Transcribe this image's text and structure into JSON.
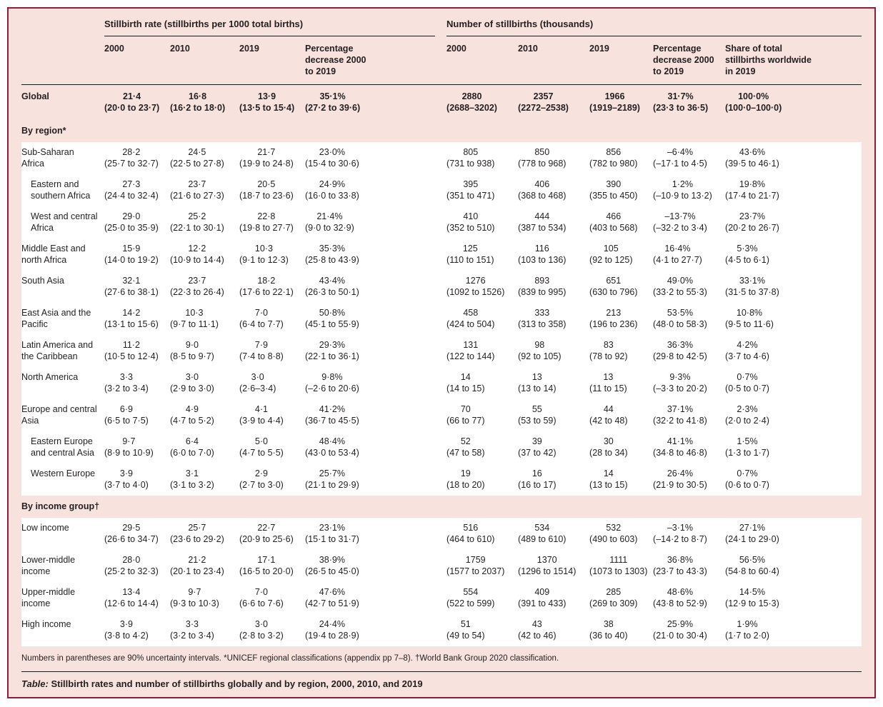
{
  "colors": {
    "maroon_border": "#8e1c3b",
    "pink_background": "#f8e2dd",
    "row_white": "#ffffff",
    "text": "#231f20"
  },
  "table": {
    "groups": [
      {
        "label": "Stillbirth rate (stillbirths per 1000 total births)"
      },
      {
        "label": "Number of stillbirths (thousands)"
      }
    ],
    "columns": [
      "2000",
      "2010",
      "2019",
      "Percentage decrease 2000 to 2019",
      "2000",
      "2010",
      "2019",
      "Percentage decrease 2000 to 2019",
      "Share of total stillbirths worldwide in 2019"
    ],
    "rows": [
      {
        "label": "Global",
        "type": "global",
        "indent": false,
        "cells": [
          [
            "21·4",
            "(20·0 to 23·7)"
          ],
          [
            "16·8",
            "(16·2 to 18·0)"
          ],
          [
            "13·9",
            "(13·5 to 15·4)"
          ],
          [
            "35·1%",
            "(27·2 to 39·6)"
          ],
          [
            "2880",
            "(2688–3202)"
          ],
          [
            "2357",
            "(2272–2538)"
          ],
          [
            "1966",
            "(1919–2189)"
          ],
          [
            "31·7%",
            "(23·3 to 36·5)"
          ],
          [
            "100·0%",
            "(100·0–100·0)"
          ]
        ]
      },
      {
        "label": "By region*",
        "type": "section"
      },
      {
        "label": "Sub-Saharan Africa",
        "type": "data",
        "indent": false,
        "cells": [
          [
            "28·2",
            "(25·7 to 32·7)"
          ],
          [
            "24·5",
            "(22·5 to 27·8)"
          ],
          [
            "21·7",
            "(19·9 to 24·8)"
          ],
          [
            "23·0%",
            "(15·4 to 30·6)"
          ],
          [
            "805",
            "(731 to 938)"
          ],
          [
            "850",
            "(778 to 968)"
          ],
          [
            "856",
            "(782 to 980)"
          ],
          [
            "–6·4%",
            "(–17·1 to 4·5)"
          ],
          [
            "43·6%",
            "(39·5 to 46·1)"
          ]
        ]
      },
      {
        "label": "Eastern and southern Africa",
        "type": "data",
        "indent": true,
        "cells": [
          [
            "27·3",
            "(24·4 to 32·4)"
          ],
          [
            "23·7",
            "(21·6 to 27·3)"
          ],
          [
            "20·5",
            "(18·7 to 23·6)"
          ],
          [
            "24·9%",
            "(16·0 to 33·8)"
          ],
          [
            "395",
            "(351 to 471)"
          ],
          [
            "406",
            "(368 to 468)"
          ],
          [
            "390",
            "(355 to 450)"
          ],
          [
            "1·2%",
            "(–10·9 to 13·2)"
          ],
          [
            "19·8%",
            "(17·4 to 21·7)"
          ]
        ]
      },
      {
        "label": "West and central Africa",
        "type": "data",
        "indent": true,
        "cells": [
          [
            "29·0",
            "(25·0 to 35·9)"
          ],
          [
            "25·2",
            "(22·1 to 30·1)"
          ],
          [
            "22·8",
            "(19·8 to 27·7)"
          ],
          [
            "21·4%",
            "(9·0 to 32·9)"
          ],
          [
            "410",
            "(352 to 510)"
          ],
          [
            "444",
            "(387 to 534)"
          ],
          [
            "466",
            "(403 to 568)"
          ],
          [
            "–13·7%",
            "(–32·2 to 3·4)"
          ],
          [
            "23·7%",
            "(20·2 to 26·7)"
          ]
        ]
      },
      {
        "label": "Middle East and north Africa",
        "type": "data",
        "indent": false,
        "cells": [
          [
            "15·9",
            "(14·0 to 19·2)"
          ],
          [
            "12·2",
            "(10·9 to 14·4)"
          ],
          [
            "10·3",
            "(9·1 to 12·3)"
          ],
          [
            "35·3%",
            "(25·8 to 43·9)"
          ],
          [
            "125",
            "(110 to 151)"
          ],
          [
            "116",
            "(103 to 136)"
          ],
          [
            "105",
            "(92 to 125)"
          ],
          [
            "16·4%",
            "(4·1 to 27·7)"
          ],
          [
            "5·3%",
            "(4·5 to 6·1)"
          ]
        ]
      },
      {
        "label": "South Asia",
        "type": "data",
        "indent": false,
        "cells": [
          [
            "32·1",
            "(27·6 to 38·1)"
          ],
          [
            "23·7",
            "(22·3 to 26·4)"
          ],
          [
            "18·2",
            "(17·6 to 22·1)"
          ],
          [
            "43·4%",
            "(26·3 to 50·1)"
          ],
          [
            "1276",
            "(1092 to 1526)"
          ],
          [
            "893",
            "(839 to 995)"
          ],
          [
            "651",
            "(630 to 796)"
          ],
          [
            "49·0%",
            "(33·2 to 55·3)"
          ],
          [
            "33·1%",
            "(31·5 to 37·8)"
          ]
        ]
      },
      {
        "label": "East Asia and the Pacific",
        "type": "data",
        "indent": false,
        "cells": [
          [
            "14·2",
            "(13·1 to 15·6)"
          ],
          [
            "10·3",
            "(9·7 to 11·1)"
          ],
          [
            "7·0",
            "(6·4 to 7·7)"
          ],
          [
            "50·8%",
            "(45·1 to 55·9)"
          ],
          [
            "458",
            "(424 to 504)"
          ],
          [
            "333",
            "(313 to 358)"
          ],
          [
            "213",
            "(196 to 236)"
          ],
          [
            "53·5%",
            "(48·0 to 58·3)"
          ],
          [
            "10·8%",
            "(9·5 to 11·6)"
          ]
        ]
      },
      {
        "label": "Latin America and the Caribbean",
        "type": "data",
        "indent": false,
        "cells": [
          [
            "11·2",
            "(10·5 to 12·4)"
          ],
          [
            "9·0",
            "(8·5 to 9·7)"
          ],
          [
            "7·9",
            "(7·4 to 8·8)"
          ],
          [
            "29·3%",
            "(22·1 to 36·1)"
          ],
          [
            "131",
            "(122 to 144)"
          ],
          [
            "98",
            "(92 to 105)"
          ],
          [
            "83",
            "(78 to 92)"
          ],
          [
            "36·3%",
            "(29·8 to 42·5)"
          ],
          [
            "4·2%",
            "(3·7 to 4·6)"
          ]
        ]
      },
      {
        "label": "North America",
        "type": "data",
        "indent": false,
        "cells": [
          [
            "3·3",
            "(3·2 to 3·4)"
          ],
          [
            "3·0",
            "(2·9 to 3·0)"
          ],
          [
            "3·0",
            "(2·6–3·4)"
          ],
          [
            "9·8%",
            "(–2·6 to 20·6)"
          ],
          [
            "14",
            "(14 to 15)"
          ],
          [
            "13",
            "(13 to 14)"
          ],
          [
            "13",
            "(11 to 15)"
          ],
          [
            "9·3%",
            "(–3·3 to 20·2)"
          ],
          [
            "0·7%",
            "(0·5 to 0·7)"
          ]
        ]
      },
      {
        "label": "Europe and central Asia",
        "type": "data",
        "indent": false,
        "cells": [
          [
            "6·9",
            "(6·5 to 7·5)"
          ],
          [
            "4·9",
            "(4·7 to 5·2)"
          ],
          [
            "4·1",
            "(3·9 to 4·4)"
          ],
          [
            "41·2%",
            "(36·7 to 45·5)"
          ],
          [
            "70",
            "(66 to 77)"
          ],
          [
            "55",
            "(53 to 59)"
          ],
          [
            "44",
            "(42 to 48)"
          ],
          [
            "37·1%",
            "(32·2 to 41·8)"
          ],
          [
            "2·3%",
            "(2·0 to 2·4)"
          ]
        ]
      },
      {
        "label": "Eastern Europe and central Asia",
        "type": "data",
        "indent": true,
        "cells": [
          [
            "9·7",
            "(8·9 to 10·9)"
          ],
          [
            "6·4",
            "(6·0 to 7·0)"
          ],
          [
            "5·0",
            "(4·7 to 5·5)"
          ],
          [
            "48·4%",
            "(43·0 to 53·4)"
          ],
          [
            "52",
            "(47 to 58)"
          ],
          [
            "39",
            "(37 to 42)"
          ],
          [
            "30",
            "(28 to 34)"
          ],
          [
            "41·1%",
            "(34·8 to 46·8)"
          ],
          [
            "1·5%",
            "(1·3 to 1·7)"
          ]
        ]
      },
      {
        "label": "Western Europe",
        "type": "data",
        "indent": true,
        "cells": [
          [
            "3·9",
            "(3·7 to 4·0)"
          ],
          [
            "3·1",
            "(3·1 to 3·2)"
          ],
          [
            "2·9",
            "(2·7 to 3·0)"
          ],
          [
            "25·7%",
            "(21·1 to 29·9)"
          ],
          [
            "19",
            "(18 to 20)"
          ],
          [
            "16",
            "(16 to 17)"
          ],
          [
            "14",
            "(13 to 15)"
          ],
          [
            "26·4%",
            "(21·9 to 30·5)"
          ],
          [
            "0·7%",
            "(0·6 to 0·7)"
          ]
        ]
      },
      {
        "label": "By income group†",
        "type": "section"
      },
      {
        "label": "Low income",
        "type": "data",
        "indent": false,
        "cells": [
          [
            "29·5",
            "(26·6 to 34·7)"
          ],
          [
            "25·7",
            "(23·6 to 29·2)"
          ],
          [
            "22·7",
            "(20·9 to 25·6)"
          ],
          [
            "23·1%",
            "(15·1 to 31·7)"
          ],
          [
            "516",
            "(464 to 610)"
          ],
          [
            "534",
            "(489 to 610)"
          ],
          [
            "532",
            "(490 to 603)"
          ],
          [
            "–3·1%",
            "(–14·2 to 8·7)"
          ],
          [
            "27·1%",
            "(24·1 to 29·0)"
          ]
        ]
      },
      {
        "label": "Lower-middle income",
        "type": "data",
        "indent": false,
        "cells": [
          [
            "28·0",
            "(25·2 to 32·3)"
          ],
          [
            "21·2",
            "(20·1 to 23·4)"
          ],
          [
            "17·1",
            "(16·5 to 20·0)"
          ],
          [
            "38·9%",
            "(26·5 to 45·0)"
          ],
          [
            "1759",
            "(1577 to 2037)"
          ],
          [
            "1370",
            "(1296 to 1514)"
          ],
          [
            "1111",
            "(1073 to 1303)"
          ],
          [
            "36·8%",
            "(23·7 to 43·3)"
          ],
          [
            "56·5%",
            "(54·8 to 60·4)"
          ]
        ]
      },
      {
        "label": "Upper-middle income",
        "type": "data",
        "indent": false,
        "cells": [
          [
            "13·4",
            "(12·6 to 14·4)"
          ],
          [
            "9·7",
            "(9·3 to 10·3)"
          ],
          [
            "7·0",
            "(6·6 to 7·6)"
          ],
          [
            "47·6%",
            "(42·7 to 51·9)"
          ],
          [
            "554",
            "(522 to 599)"
          ],
          [
            "409",
            "(391 to 433)"
          ],
          [
            "285",
            "(269 to 309)"
          ],
          [
            "48·6%",
            "(43·8 to 52·9)"
          ],
          [
            "14·5%",
            "(12·9 to 15·3)"
          ]
        ]
      },
      {
        "label": "High income",
        "type": "data",
        "indent": false,
        "cells": [
          [
            "3·9",
            "(3·8 to 4·2)"
          ],
          [
            "3·3",
            "(3·2 to 3·4)"
          ],
          [
            "3·0",
            "(2·8 to 3·2)"
          ],
          [
            "24·4%",
            "(19·4 to 28·9)"
          ],
          [
            "51",
            "(49 to 54)"
          ],
          [
            "43",
            "(42 to 46)"
          ],
          [
            "38",
            "(36 to 40)"
          ],
          [
            "25·9%",
            "(21·0 to 30·4)"
          ],
          [
            "1·9%",
            "(1·7 to 2·0)"
          ]
        ]
      }
    ],
    "footnote": "Numbers in parentheses are 90% uncertainty intervals. *UNICEF regional classifications (appendix pp 7–8). †World Bank Group 2020 classification.",
    "caption_label": "Table:",
    "caption_text": "Stillbirth rates and number of stillbirths globally and by region, 2000, 2010, and 2019"
  }
}
